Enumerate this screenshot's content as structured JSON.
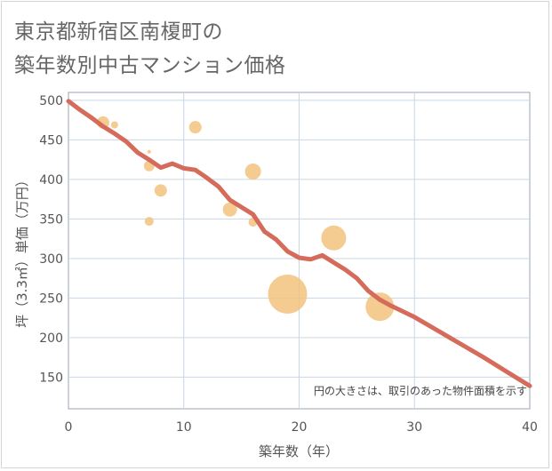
{
  "chart_data": {
    "type": "scatter+line",
    "title_line1": "東京都新宿区南榎町の",
    "title_line2": "築年数別中古マンション価格",
    "xlabel": "築年数（年）",
    "ylabel": "坪（3.3㎡）単価（万円）",
    "xlim": [
      0,
      40
    ],
    "ylim": [
      110,
      510
    ],
    "x_ticks": [
      0,
      10,
      20,
      30,
      40
    ],
    "y_ticks": [
      150,
      200,
      250,
      300,
      350,
      400,
      450,
      500
    ],
    "note": "円の大きさは、取引のあった物件面積を示す",
    "colors": {
      "line": "#d56b5a",
      "bubble": "#f2c27e",
      "grid": "#c9d6e3",
      "plot_border": "#9aa5b1"
    },
    "line": {
      "name": "trend",
      "x": [
        0,
        1,
        2,
        3,
        4,
        5,
        6,
        7,
        8,
        9,
        10,
        11,
        12,
        13,
        14,
        15,
        16,
        17,
        18,
        19,
        20,
        21,
        22,
        23,
        24,
        25,
        26,
        27,
        28,
        29,
        30,
        32,
        34,
        36,
        38,
        40
      ],
      "y": [
        499,
        488,
        478,
        467,
        458,
        448,
        434,
        425,
        415,
        420,
        414,
        412,
        402,
        391,
        374,
        365,
        356,
        334,
        324,
        309,
        301,
        299,
        304,
        295,
        286,
        275,
        259,
        248,
        240,
        233,
        226,
        209,
        192,
        175,
        157,
        139
      ]
    },
    "bubbles": [
      {
        "x": 3,
        "y": 472,
        "size": 7
      },
      {
        "x": 4,
        "y": 469,
        "size": 4
      },
      {
        "x": 7,
        "y": 435,
        "size": 2
      },
      {
        "x": 7,
        "y": 417,
        "size": 6
      },
      {
        "x": 7,
        "y": 347,
        "size": 5
      },
      {
        "x": 8,
        "y": 386,
        "size": 7
      },
      {
        "x": 11,
        "y": 466,
        "size": 7
      },
      {
        "x": 14,
        "y": 362,
        "size": 8
      },
      {
        "x": 16,
        "y": 410,
        "size": 9
      },
      {
        "x": 16,
        "y": 346,
        "size": 5
      },
      {
        "x": 19,
        "y": 255,
        "size": 22
      },
      {
        "x": 23,
        "y": 326,
        "size": 14
      },
      {
        "x": 27,
        "y": 239,
        "size": 16
      }
    ]
  }
}
